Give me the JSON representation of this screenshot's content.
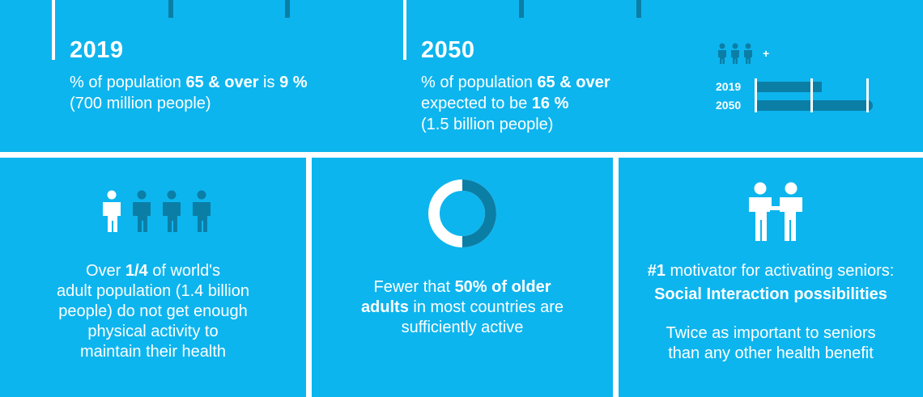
{
  "colors": {
    "panel_bg": "#0db5ee",
    "dark_accent": "#0b7ea6",
    "text": "#ffffff"
  },
  "stats": {
    "y2019": {
      "year": "2019",
      "line1_pre": "% of population ",
      "line1_bold": "65 & over",
      "line1_mid": " is ",
      "line1_value": "9 %",
      "line2": "(700 million people)"
    },
    "y2050": {
      "year": "2050",
      "line1_pre": "% of population ",
      "line1_bold": "65 & over",
      "line2_pre": "expected to be ",
      "line2_value": "16 %",
      "line3": "(1.5 billion people)"
    }
  },
  "mini_chart": {
    "legend_plus": "+",
    "rows": [
      {
        "label": "2019",
        "value": 9
      },
      {
        "label": "2050",
        "value": 16
      }
    ],
    "max": 16
  },
  "cards": {
    "activity": {
      "text_pre": "Over ",
      "text_bold": "1/4",
      "text_mid1": " of world's",
      "line2": "adult population (1.4 billion",
      "line3": "people) do not get enough",
      "line4": "physical activity to",
      "line5": "maintain their health",
      "icon": "people-group-icon"
    },
    "active": {
      "line1_pre": "Fewer that ",
      "line1_bold": "50% of older",
      "line2_bold": "adults",
      "line2_post": " in most countries are",
      "line3": "sufficiently active",
      "donut_percent": 50,
      "icon": "donut-chart-icon"
    },
    "social": {
      "line1_bold": "#1",
      "line1_post": " motivator for activating seniors:",
      "line2_bold": "Social Interaction possibilities",
      "line3": "Twice as important to seniors",
      "line4": "than any other health benefit",
      "icon": "two-people-holding-hands-icon"
    }
  }
}
